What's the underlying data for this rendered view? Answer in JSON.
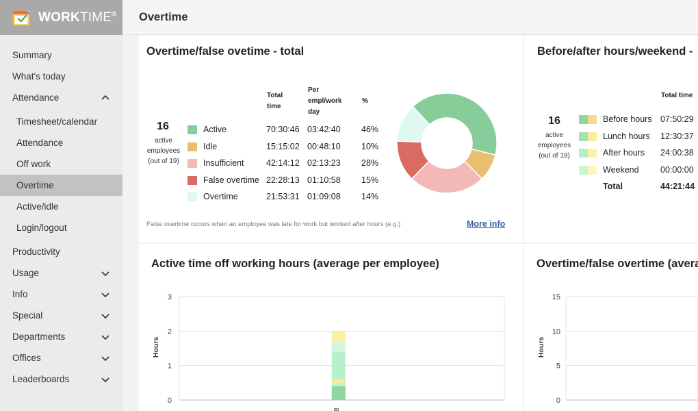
{
  "app": {
    "logo_main": "WORK",
    "logo_thin": "TIME",
    "logo_reg": "®"
  },
  "page_title": "Overtime",
  "sidebar": {
    "items": [
      {
        "label": "Summary"
      },
      {
        "label": "What's today"
      },
      {
        "label": "Attendance"
      },
      {
        "label": "Timesheet/calendar"
      },
      {
        "label": "Attendance"
      },
      {
        "label": "Off work"
      },
      {
        "label": "Overtime"
      },
      {
        "label": "Active/idle"
      },
      {
        "label": "Login/logout"
      },
      {
        "label": "Productivity"
      },
      {
        "label": "Usage"
      },
      {
        "label": "Info"
      },
      {
        "label": "Special"
      },
      {
        "label": "Departments"
      },
      {
        "label": "Offices"
      },
      {
        "label": "Leaderboards"
      }
    ]
  },
  "card1": {
    "title": "Overtime/false ovetime - total",
    "headers": {
      "total": "Total time",
      "per": "Per empl/work day",
      "pct": "%"
    },
    "active_count": "16",
    "active_caption": "active employees (out of 19)",
    "rows": [
      {
        "name": "Active",
        "total": "70:30:46",
        "per": "03:42:40",
        "pct": "46%",
        "color": "#88cc99"
      },
      {
        "name": "Idle",
        "total": "15:15:02",
        "per": "00:48:10",
        "pct": "10%",
        "color": "#e8bf6e"
      },
      {
        "name": "Insufficient",
        "total": "42:14:12",
        "per": "02:13:23",
        "pct": "28%",
        "color": "#f2b9b7"
      },
      {
        "name": "False overtime",
        "total": "22:28:13",
        "per": "01:10:58",
        "pct": "15%",
        "color": "#d96b63"
      },
      {
        "name": "Overtime",
        "total": "21:53:31",
        "per": "01:09:08",
        "pct": "14%",
        "color": "#dff8f2"
      }
    ],
    "footnote": "False overtime occurs when an employee was late for work but worked after hours (e.g.)",
    "more_info": "More info"
  },
  "card2": {
    "title": "Before/after hours/weekend -",
    "header_total": "Total time",
    "active_count": "16",
    "active_caption": "active employees (out of 19)",
    "rows": [
      {
        "name": "Before hours",
        "total": "07:50:29"
      },
      {
        "name": "Lunch hours",
        "total": "12:30:37"
      },
      {
        "name": "After hours",
        "total": "24:00:38"
      },
      {
        "name": "Weekend",
        "total": "00:00:00"
      }
    ],
    "total_label": "Total",
    "total_value": "44:21:44"
  },
  "card3": {
    "title": "Active time off working hours (average per employee)",
    "ylabel": "Hours",
    "xtick": "8"
  },
  "card4": {
    "title": "Overtime/false overtime (avera",
    "ylabel": "Hours"
  },
  "chart_data": [
    {
      "type": "pie",
      "title": "",
      "categories": [
        "Active",
        "Idle",
        "Insufficient",
        "False overtime",
        "Overtime"
      ],
      "values": [
        46,
        10,
        28,
        15,
        14
      ],
      "colors": [
        "#88cc99",
        "#e8bf6e",
        "#f2b9b7",
        "#d96b63",
        "#dff8f2"
      ]
    },
    {
      "type": "bar",
      "title": "Active time off working hours (average per employee)",
      "ylabel": "Hours",
      "ylim": [
        0,
        3
      ],
      "yticks": [
        0,
        1,
        2,
        3
      ],
      "categories": [
        "8"
      ],
      "series": [
        {
          "values": [
            0.4
          ],
          "color": "#8fd6a0"
        },
        {
          "values": [
            0.1
          ],
          "color": "#c5f0c9"
        },
        {
          "values": [
            0.1
          ],
          "color": "#f7e99a"
        },
        {
          "values": [
            0.8
          ],
          "color": "#b9f0cc"
        },
        {
          "values": [
            0.3
          ],
          "color": "#d4f5dc"
        },
        {
          "values": [
            0.3
          ],
          "color": "#fbf0a0"
        }
      ]
    },
    {
      "type": "bar",
      "title": "Overtime/false overtime (avera",
      "ylabel": "Hours",
      "ylim": [
        0,
        15
      ],
      "yticks": [
        0,
        5,
        10,
        15
      ],
      "categories": [],
      "series": []
    }
  ]
}
